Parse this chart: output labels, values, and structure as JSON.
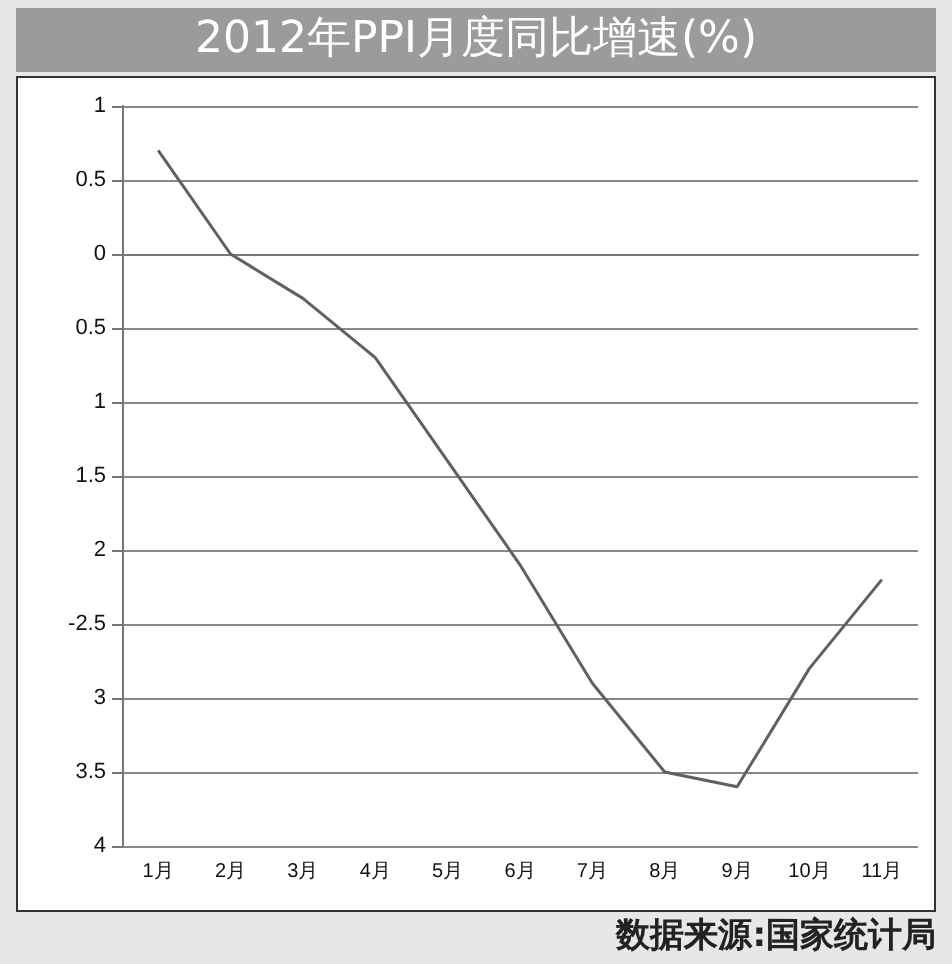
{
  "chart_data": {
    "type": "line",
    "title": "2012年PPI月度同比增速(%)",
    "categories": [
      "1月",
      "2月",
      "3月",
      "4月",
      "5月",
      "6月",
      "7月",
      "8月",
      "9月",
      "10月",
      "11月"
    ],
    "series": [
      {
        "color": "#606060",
        "values": [
          0.7,
          0.0,
          -0.3,
          -0.7,
          -1.4,
          -2.1,
          -2.9,
          -3.5,
          -3.6,
          -2.8,
          -2.2
        ]
      }
    ],
    "ylim": [
      -4,
      1
    ],
    "yticks": [
      {
        "value": -4,
        "label": "4"
      },
      {
        "value": -3.5,
        "label": "3.5"
      },
      {
        "value": -3,
        "label": "3"
      },
      {
        "value": -2.5,
        "label": "-2.5"
      },
      {
        "value": -2,
        "label": "2"
      },
      {
        "value": -1.5,
        "label": "1.5"
      },
      {
        "value": -1,
        "label": "1"
      },
      {
        "value": -0.5,
        "label": "0.5"
      },
      0,
      0.5,
      1
    ],
    "grid": "y",
    "marker": "none",
    "line_style": "solid",
    "annotations": [
      "数据来源:国家统计局"
    ]
  }
}
